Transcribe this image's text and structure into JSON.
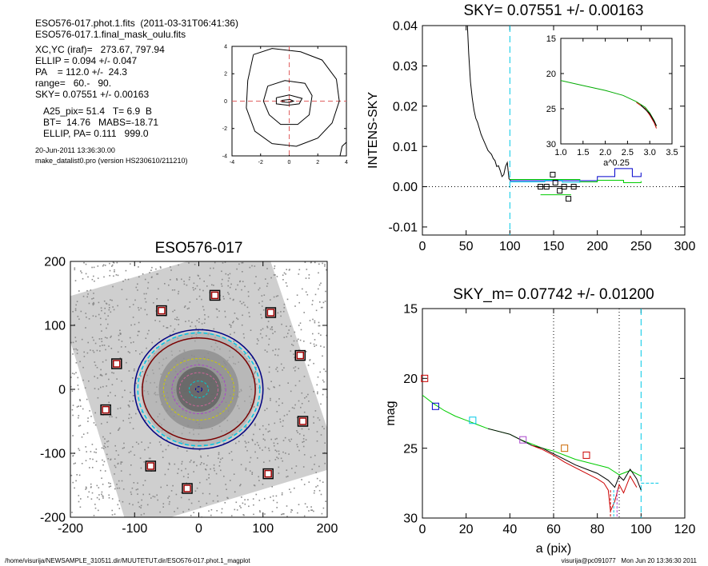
{
  "header": {
    "lines": [
      "ESO576-017.phot.1.fits  (2011-03-31T06:41:36)",
      "ESO576-017.1.final_mask_oulu.fits",
      "XC,YC (iraf)=   273.67, 797.94",
      "ELLIP = 0.094 +/- 0.047",
      "PA    = 112.0 +/-  24.3",
      "range=   60.-   90.",
      "SKY= 0.07551 +/- 0.00163",
      "A25_pix= 51.4   T= 6.9  B",
      "BT=  14.76   MABS=-18.71",
      "ELLIP, PA= 0.111   999.0",
      "20-Jun-2011 13:36:30.00",
      "make_datalist0.pro (version HS230610/211210)"
    ]
  },
  "footer": {
    "path": "/home/visurija/NEWSAMPLE_310511.dir/MUUTETUT.dir/ESO576-017.phot.1_magplot",
    "user": "visurija@pc091077   Mon Jun 20 13:36:30 2011"
  },
  "chart_data": [
    {
      "type": "line",
      "panel": "contour-map",
      "title": "",
      "xlim": [
        -4,
        4
      ],
      "ylim": [
        -4,
        4
      ],
      "xticks": [
        -4,
        -2,
        0,
        2,
        4
      ],
      "yticks": [
        -4,
        -2,
        0,
        2,
        4
      ],
      "series": [
        {
          "values": [
            [
              -2.5,
              3.4
            ],
            [
              -1.2,
              3.85
            ],
            [
              0.8,
              3.6
            ],
            [
              2.3,
              3.0
            ],
            [
              3.3,
              1.6
            ],
            [
              3.5,
              0
            ],
            [
              3.0,
              -1.6
            ],
            [
              2.0,
              -2.7
            ],
            [
              0.5,
              -3.3
            ],
            [
              -1.2,
              -3.1
            ],
            [
              -2.4,
              -2.2
            ],
            [
              -3.0,
              -0.5
            ],
            [
              -2.9,
              1.5
            ],
            [
              -2.5,
              3.4
            ]
          ]
        },
        {
          "values": [
            [
              -1.5,
              1.1
            ],
            [
              -0.3,
              1.5
            ],
            [
              1.1,
              1.3
            ],
            [
              1.6,
              0.4
            ],
            [
              1.4,
              -1.0
            ],
            [
              0.6,
              -1.7
            ],
            [
              -0.6,
              -1.7
            ],
            [
              -1.4,
              -1.0
            ],
            [
              -1.8,
              0
            ],
            [
              -1.5,
              1.1
            ]
          ]
        },
        {
          "values": [
            [
              -0.9,
              0.25
            ],
            [
              0,
              0.45
            ],
            [
              0.9,
              0.2
            ],
            [
              0.7,
              -0.2
            ],
            [
              -0.1,
              -0.3
            ],
            [
              -0.9,
              -0.2
            ],
            [
              -0.9,
              0.25
            ]
          ]
        },
        {
          "values": [
            [
              -0.55,
              0.05
            ],
            [
              0.05,
              0.12
            ],
            [
              0.3,
              0
            ],
            [
              0,
              -0.1
            ],
            [
              -0.55,
              -0.05
            ]
          ]
        },
        {
          "values": [
            [
              3.55,
              -4
            ],
            [
              3.7,
              -3.3
            ],
            [
              4,
              -3.0
            ]
          ]
        }
      ],
      "crosshair": {
        "x": 0,
        "y": 0
      },
      "crosshair_color": "#e06060"
    },
    {
      "type": "line",
      "panel": "sky-profile",
      "title": "SKY= 0.07551 +/- 0.00163",
      "xlabel": "",
      "ylabel": "INTENS-SKY",
      "xlim": [
        0,
        300
      ],
      "ylim": [
        -0.012,
        0.04
      ],
      "xticks": [
        0,
        50,
        100,
        150,
        200,
        250,
        300
      ],
      "yticks": [
        -0.01,
        0.0,
        0.01,
        0.02,
        0.03,
        0.04
      ],
      "ytick_labels": [
        "-0.01",
        "0.00",
        "0.01",
        "0.02",
        "0.03",
        "0.04"
      ],
      "vline": 100,
      "vline_color": "#00c8e6",
      "zero_line": 0,
      "series": [
        {
          "color": "#000000",
          "x": [
            51,
            53,
            55,
            57,
            59,
            61,
            63,
            65,
            67,
            69,
            71,
            73,
            75,
            77,
            79,
            81,
            83,
            85,
            87,
            89,
            91,
            93,
            95,
            97,
            99,
            101
          ],
          "values": [
            0.042,
            0.033,
            0.026,
            0.022,
            0.019,
            0.017,
            0.016,
            0.0145,
            0.013,
            0.012,
            0.011,
            0.01,
            0.009,
            0.0085,
            0.008,
            0.007,
            0.0065,
            0.005,
            0.0052,
            0.004,
            0.0025,
            0.003,
            0.005,
            0.006,
            0.002,
            0.0015
          ]
        },
        {
          "color": "#0000cc",
          "step": true,
          "x": [
            100,
            150,
            200,
            220,
            240,
            250
          ],
          "values": [
            0.0015,
            0.0015,
            0.0025,
            0.0045,
            0.0025,
            0.0035
          ]
        },
        {
          "color": "#00cc00",
          "step": true,
          "x": [
            100,
            180,
            200,
            230,
            250
          ],
          "values": [
            0.0018,
            0.0012,
            0.0016,
            0.001,
            0.0014
          ]
        },
        {
          "color": "#00c8e6",
          "step": true,
          "x": [
            100,
            140,
            160,
            180
          ],
          "values": [
            0.0012,
            0.0016,
            0.0011,
            0.0016
          ]
        }
      ],
      "markers": {
        "symbol": "square",
        "x": [
          135,
          142,
          149,
          152,
          157,
          162,
          167,
          173
        ],
        "values": [
          0.0,
          0.0,
          0.003,
          0.001,
          -0.001,
          0.0,
          -0.003,
          0.0
        ]
      },
      "inset": {
        "xlabel": "a^0.25",
        "xlim": [
          1.0,
          3.5
        ],
        "ylim": [
          15,
          30
        ],
        "inverted": true,
        "xticks": [
          1.0,
          1.5,
          2.0,
          2.5,
          3.0,
          3.5
        ],
        "xtick_labels": [
          "1.0",
          "1.5",
          "2.0",
          "2.5",
          "3.0",
          "3.5"
        ],
        "yticks": [
          15,
          20,
          25,
          30
        ],
        "series": [
          {
            "color": "#00aa00",
            "x": [
              1.0,
              1.5,
              2.0,
              2.4,
              2.7,
              2.9,
              3.0,
              3.1,
              3.15
            ],
            "values": [
              21.0,
              21.7,
              22.4,
              23.1,
              24.0,
              24.8,
              25.6,
              26.7,
              27.5
            ]
          },
          {
            "color": "#cc0000",
            "x": [
              2.7,
              2.9,
              3.0,
              3.1,
              3.15
            ],
            "values": [
              24.1,
              25.0,
              25.9,
              27.0,
              27.8
            ]
          },
          {
            "color": "#000000",
            "x": [
              2.8,
              3.0,
              3.1,
              3.15
            ],
            "values": [
              24.5,
              25.7,
              26.8,
              27.4
            ]
          }
        ]
      }
    },
    {
      "type": "scatter",
      "panel": "galaxy-image",
      "title": "ESO576-017",
      "xlim": [
        -200,
        200
      ],
      "ylim": [
        -200,
        200
      ],
      "xticks": [
        -200,
        -100,
        0,
        100,
        200
      ],
      "yticks": [
        -200,
        -100,
        0,
        100,
        200
      ],
      "stars": {
        "x": [
          -58,
          25,
          112,
          -128,
          158,
          -145,
          162,
          -75,
          108,
          -18
        ],
        "values": [
          123,
          147,
          120,
          40,
          53,
          -32,
          -50,
          -120,
          -132,
          -155
        ]
      },
      "ellipses": [
        {
          "color": "#000080",
          "a": 100,
          "b": 93
        },
        {
          "color": "#00c8e6",
          "a": 95,
          "b": 88
        },
        {
          "color": "#7a0000",
          "a": 88,
          "b": 80
        },
        {
          "color": "#cccc00",
          "a": 55,
          "b": 48
        },
        {
          "color": "#aa44cc",
          "a": 42,
          "b": 38
        },
        {
          "color": "#cc6699",
          "a": 30,
          "b": 26
        },
        {
          "color": "#00cccc",
          "a": 15,
          "b": 13
        },
        {
          "color": "#0000aa",
          "a": 5,
          "b": 4
        }
      ]
    },
    {
      "type": "line",
      "panel": "mag-profile",
      "title": "SKY_m=  0.07742 +/- 0.01200",
      "xlabel": "a (pix)",
      "ylabel": "mag",
      "xlim": [
        0,
        120
      ],
      "ylim": [
        15,
        30
      ],
      "inverted": true,
      "xticks": [
        0,
        20,
        40,
        60,
        80,
        100,
        120
      ],
      "yticks": [
        15,
        20,
        25,
        30
      ],
      "vlines": [
        60,
        90
      ],
      "vline_cyan": 100,
      "sky_level": 27.5,
      "series": [
        {
          "color": "#00cc00",
          "x": [
            0,
            5,
            10,
            15,
            20,
            25,
            30,
            35,
            40,
            45,
            50,
            55,
            60,
            65,
            70,
            75,
            80,
            85,
            90,
            95,
            100
          ],
          "values": [
            21.2,
            21.8,
            22.3,
            22.7,
            23.0,
            23.3,
            23.6,
            23.8,
            24.0,
            24.4,
            24.7,
            25.0,
            25.2,
            25.5,
            25.8,
            26.0,
            26.2,
            26.4,
            26.9,
            26.6,
            27.0
          ]
        },
        {
          "color": "#000000",
          "x": [
            30,
            35,
            40,
            45,
            50,
            55,
            60,
            65,
            70,
            75,
            80,
            85,
            88,
            90,
            92,
            95,
            98,
            100
          ],
          "values": [
            23.6,
            23.8,
            24.0,
            24.4,
            24.8,
            25.0,
            25.4,
            25.8,
            26.2,
            26.5,
            26.8,
            27.3,
            27.8,
            27.0,
            27.3,
            26.5,
            27.2,
            28.0
          ]
        },
        {
          "color": "#cc0000",
          "x": [
            50,
            55,
            60,
            65,
            70,
            75,
            80,
            83,
            85,
            86,
            88,
            90,
            92,
            95,
            98
          ],
          "values": [
            24.8,
            25.1,
            25.5,
            26.0,
            26.4,
            26.8,
            27.2,
            27.5,
            28.0,
            29.5,
            28.8,
            27.6,
            28.2,
            27.0,
            27.8
          ]
        }
      ],
      "markers": {
        "symbol": "square",
        "x": [
          1,
          6,
          23,
          46,
          65,
          75
        ],
        "values": [
          20.0,
          22.0,
          23.0,
          24.4,
          25.0,
          25.5
        ],
        "colors": [
          "#cc0000",
          "#0000cc",
          "#00c8e6",
          "#aa44cc",
          "#cc6600",
          "#cc0000"
        ]
      }
    }
  ]
}
